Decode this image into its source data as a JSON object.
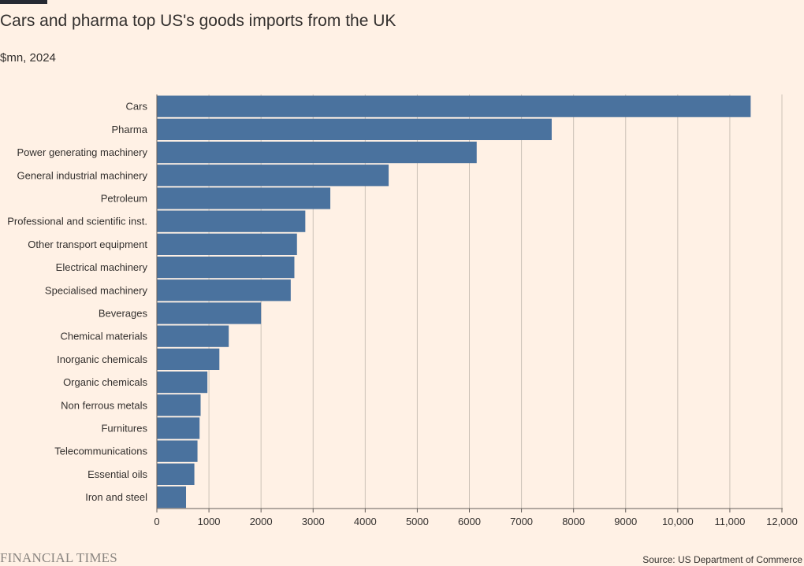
{
  "header": {
    "title": "Cars and pharma top US's goods imports from the UK",
    "subtitle": "$mn, 2024"
  },
  "footer": {
    "brand": "FINANCIAL TIMES",
    "source": "Source: US Department of Commerce"
  },
  "colors": {
    "bar": "#4a729e",
    "grid": "#cdc3b8",
    "axis": "#66605c",
    "background": "#fff1e5"
  },
  "chart_data": {
    "type": "bar",
    "orientation": "horizontal",
    "categories": [
      "Cars",
      "Pharma",
      "Power generating machinery",
      "General industrial machinery",
      "Petroleum",
      "Professional and scientific inst.",
      "Other transport equipment",
      "Electrical machinery",
      "Specialised machinery",
      "Beverages",
      "Chemical materials",
      "Inorganic chemicals",
      "Organic chemicals",
      "Non ferrous metals",
      "Furnitures",
      "Telecommunications",
      "Essential oils",
      "Iron and steel"
    ],
    "values": [
      11400,
      7580,
      6140,
      4450,
      3330,
      2850,
      2690,
      2640,
      2570,
      2000,
      1380,
      1200,
      970,
      840,
      820,
      780,
      720,
      560
    ],
    "xlim": [
      0,
      12000
    ],
    "ticks": [
      0,
      1000,
      2000,
      3000,
      4000,
      5000,
      6000,
      7000,
      8000,
      9000,
      10000,
      11000,
      12000
    ],
    "tick_labels": [
      "0",
      "1000",
      "2000",
      "3000",
      "4000",
      "5000",
      "6000",
      "7000",
      "8000",
      "9000",
      "10,000",
      "11,000",
      "12,000"
    ],
    "grid": true,
    "xlabel": "",
    "ylabel": ""
  }
}
